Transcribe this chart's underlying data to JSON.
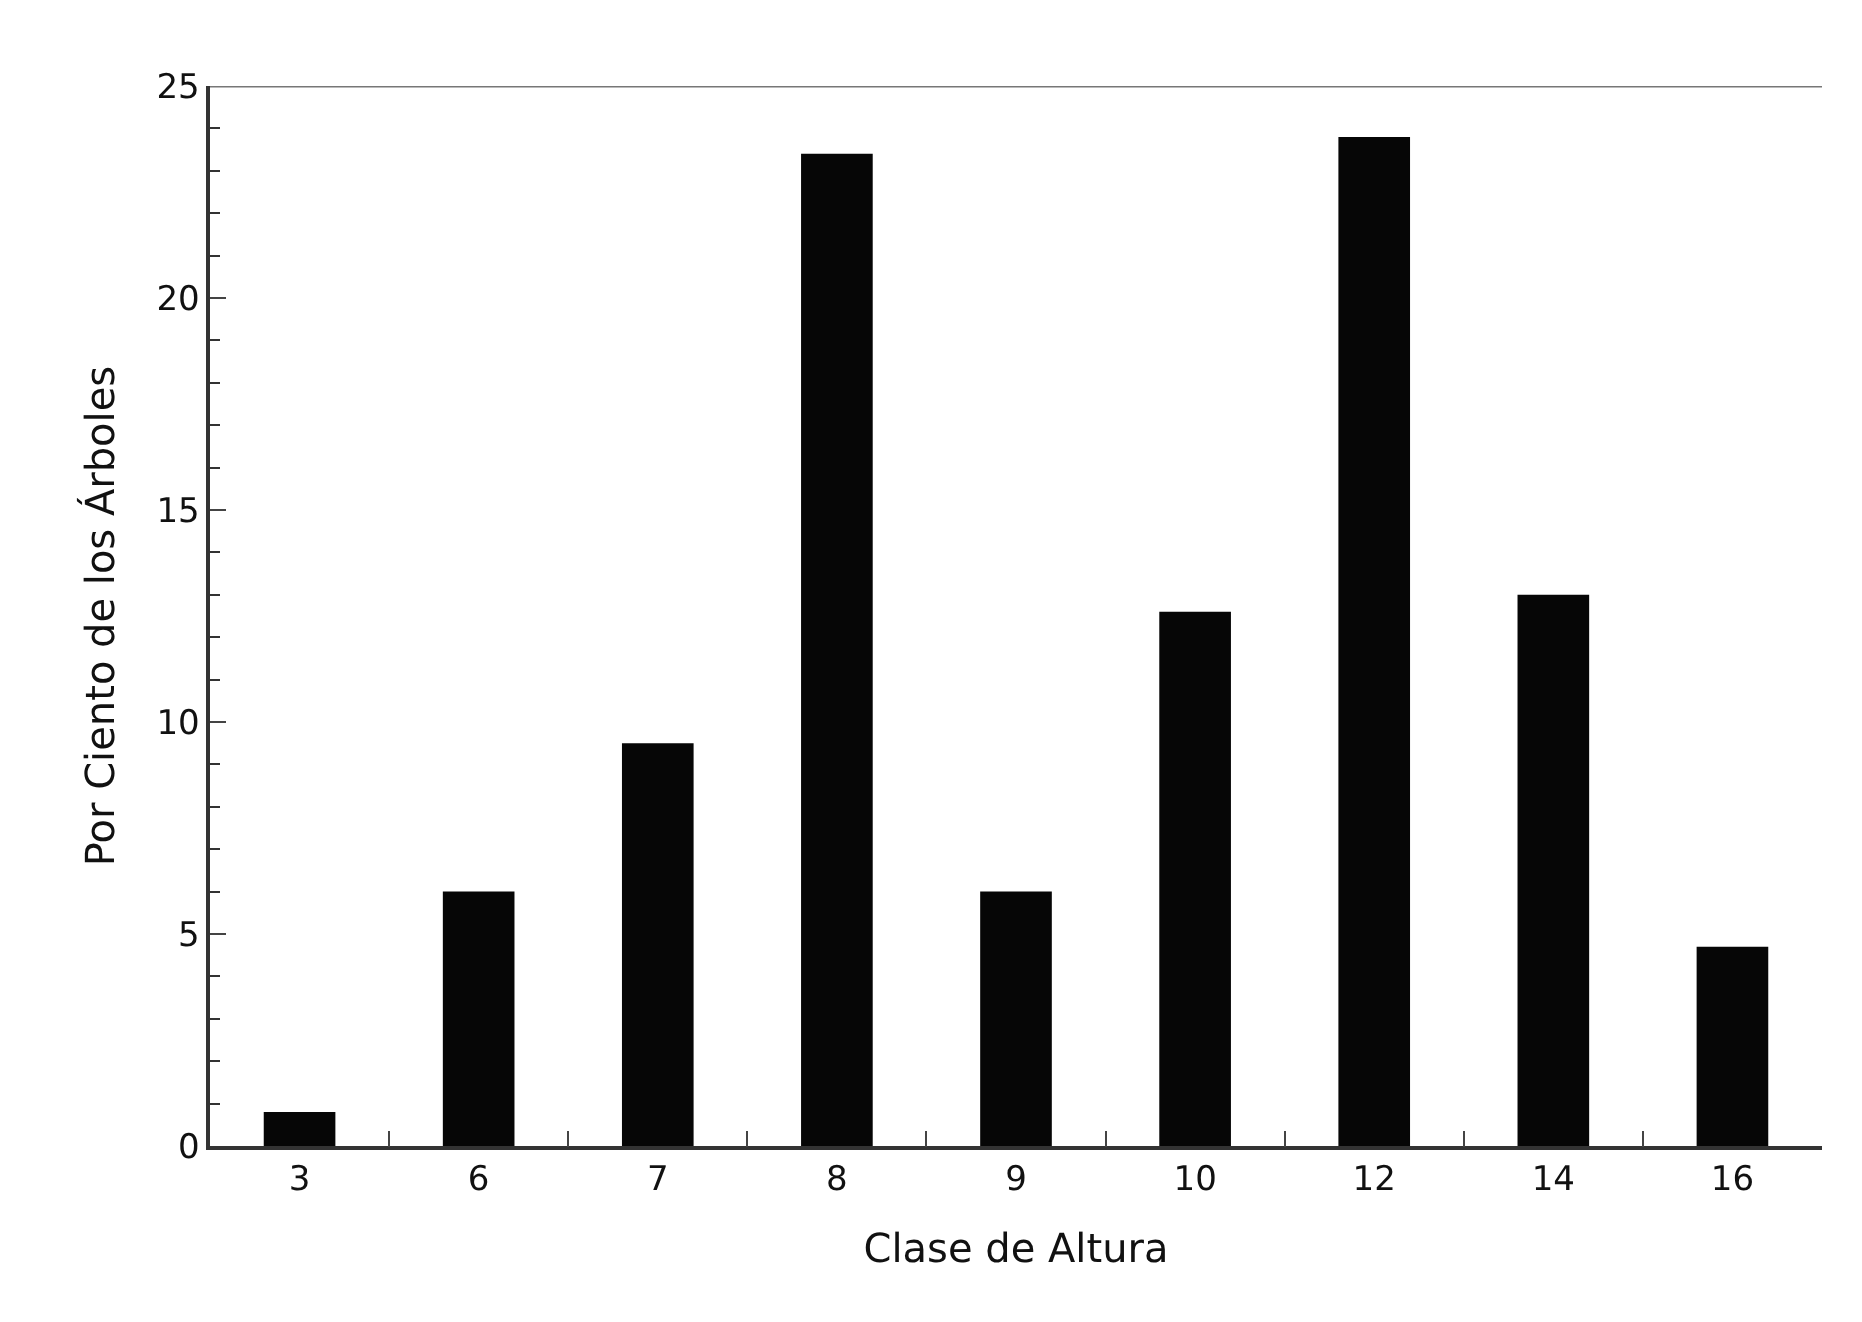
{
  "chart_data": {
    "type": "bar",
    "xlabel": "Clase de Altura",
    "ylabel": "Por Ciento de los Árboles",
    "categories": [
      "3",
      "6",
      "7",
      "8",
      "9",
      "10",
      "12",
      "14",
      "16"
    ],
    "values": [
      0.8,
      6.0,
      9.5,
      23.4,
      6.0,
      12.6,
      23.8,
      13.0,
      4.7
    ],
    "color": "#060606",
    "ylim": [
      0,
      25
    ],
    "yticks": [
      0,
      5,
      10,
      15,
      20,
      25
    ]
  }
}
